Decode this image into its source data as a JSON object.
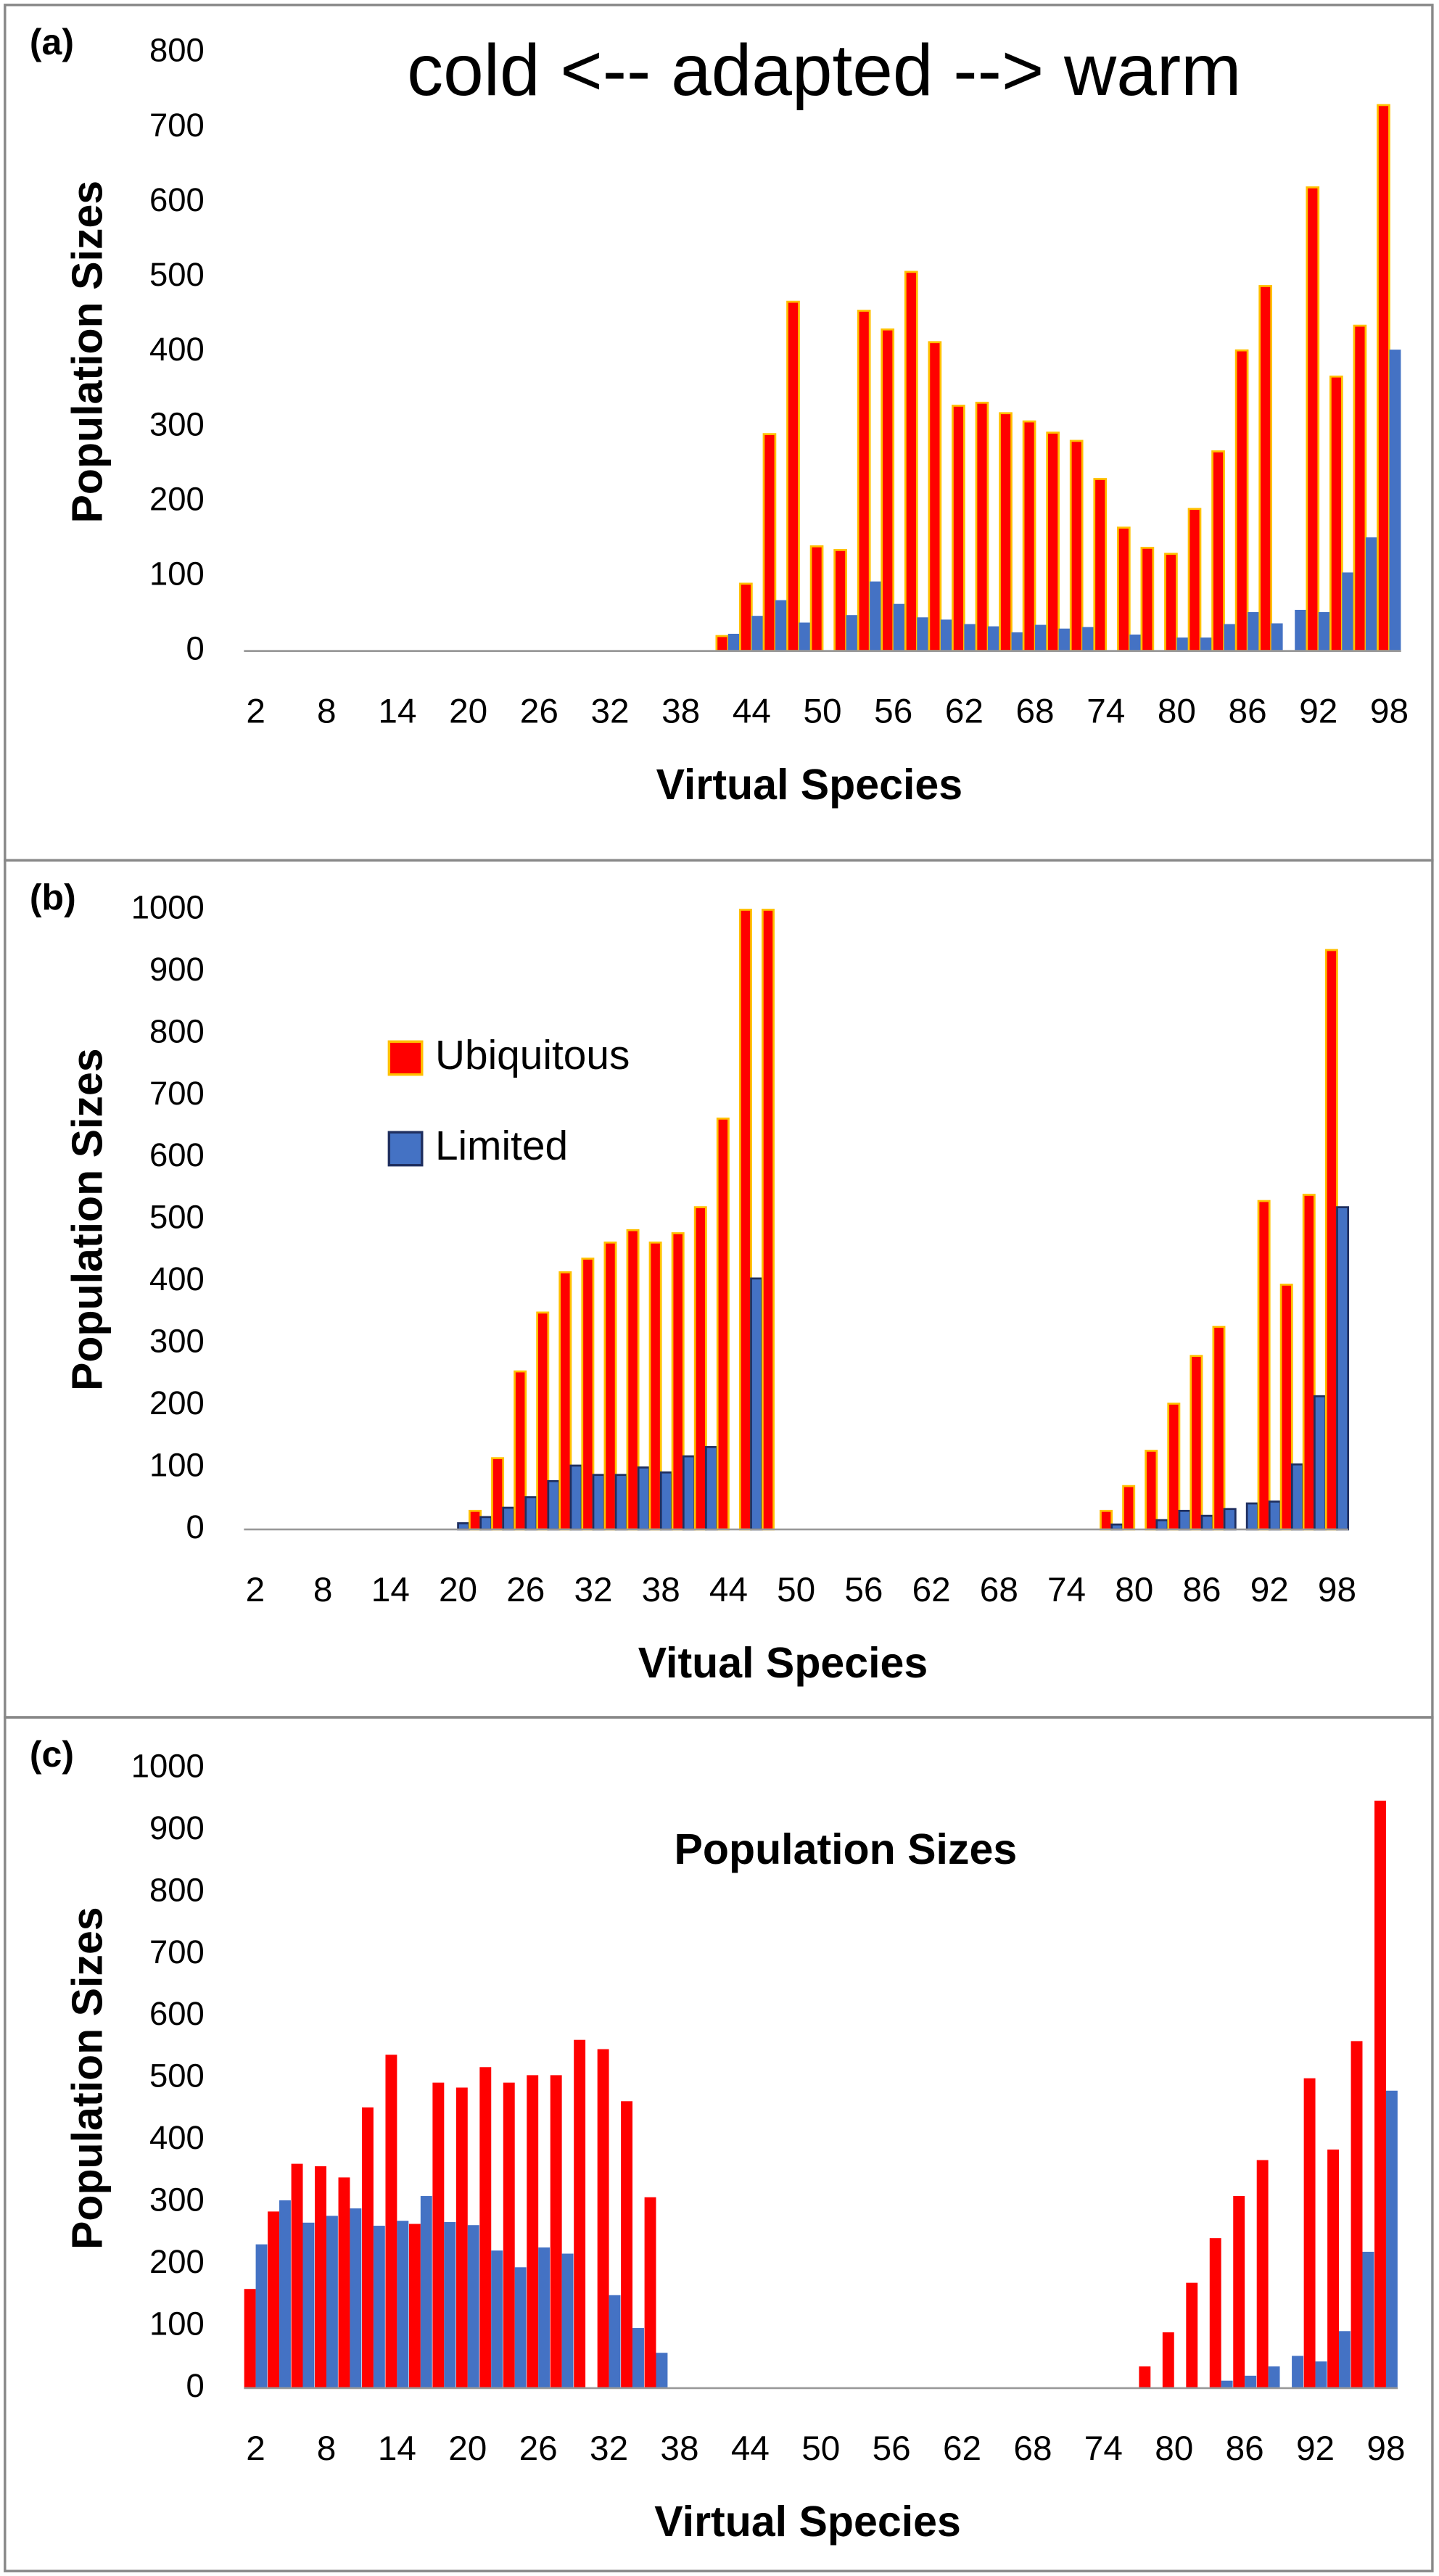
{
  "chart_data": [
    {
      "type": "bar",
      "panel": "(a)",
      "title": "cold <-- adapted  --> warm",
      "xlabel": "Virtual Species",
      "ylabel": "Population  Sizes",
      "categories": [
        2,
        null,
        null,
        8,
        null,
        null,
        14,
        null,
        null,
        20,
        null,
        null,
        26,
        null,
        null,
        32,
        null,
        null,
        38,
        null,
        null,
        44,
        null,
        null,
        50,
        null,
        null,
        56,
        null,
        null,
        62,
        null,
        null,
        68,
        null,
        null,
        74,
        null,
        null,
        80,
        null,
        null,
        86,
        null,
        null,
        92,
        null,
        null,
        98
      ],
      "ylim": [
        0,
        800
      ],
      "yticks": [
        0,
        100,
        200,
        300,
        400,
        500,
        600,
        700,
        800
      ],
      "series": [
        {
          "color": "#ff0000",
          "edgecolor": "#ffc000",
          "values": [
            0,
            0,
            0,
            0,
            0,
            0,
            0,
            0,
            0,
            0,
            0,
            0,
            0,
            0,
            0,
            0,
            0,
            0,
            0,
            0,
            20,
            90,
            290,
            467,
            140,
            135,
            455,
            430,
            507,
            413,
            328,
            332,
            318,
            307,
            292,
            281,
            230,
            165,
            138,
            130,
            190,
            267,
            402,
            488,
            0,
            620,
            367,
            435,
            730
          ]
        },
        {
          "color": "#4472c4",
          "values": [
            0,
            0,
            0,
            0,
            0,
            0,
            0,
            0,
            0,
            0,
            0,
            0,
            0,
            0,
            0,
            0,
            0,
            0,
            0,
            0,
            23,
            47,
            68,
            38,
            0,
            48,
            93,
            63,
            45,
            42,
            36,
            33,
            25,
            35,
            30,
            32,
            0,
            22,
            0,
            18,
            18,
            36,
            52,
            37,
            55,
            52,
            105,
            152,
            403
          ]
        }
      ]
    },
    {
      "type": "bar",
      "panel": "(b)",
      "xlabel": "Vitual Species",
      "ylabel": "Population  Sizes",
      "legend": "upper left",
      "categories": [
        2,
        null,
        null,
        8,
        null,
        null,
        14,
        null,
        null,
        20,
        null,
        null,
        26,
        null,
        null,
        32,
        null,
        null,
        38,
        null,
        null,
        44,
        null,
        null,
        50,
        null,
        null,
        56,
        null,
        null,
        62,
        null,
        null,
        68,
        null,
        null,
        74,
        null,
        null,
        80,
        null,
        null,
        86,
        null,
        null,
        92,
        null,
        null,
        98
      ],
      "ylim": [
        0,
        1000
      ],
      "yticks": [
        0,
        100,
        200,
        300,
        400,
        500,
        600,
        700,
        800,
        900,
        1000
      ],
      "series": [
        {
          "name": "Ubiquitous",
          "color": "#ff0000",
          "edgecolor": "#ffc000",
          "values": [
            0,
            0,
            0,
            0,
            0,
            0,
            0,
            0,
            0,
            0,
            30,
            115,
            255,
            350,
            415,
            437,
            463,
            483,
            463,
            478,
            520,
            663,
            1000,
            1000,
            0,
            0,
            0,
            0,
            0,
            0,
            0,
            0,
            0,
            0,
            0,
            0,
            0,
            0,
            30,
            70,
            127,
            203,
            280,
            327,
            0,
            530,
            395,
            540,
            935
          ]
        },
        {
          "name": "Limited",
          "color": "#4472c4",
          "edgecolor": "#1f2f5f",
          "values": [
            0,
            0,
            0,
            0,
            0,
            0,
            0,
            0,
            0,
            10,
            20,
            35,
            52,
            78,
            103,
            88,
            88,
            100,
            92,
            118,
            133,
            0,
            405,
            0,
            0,
            0,
            0,
            0,
            0,
            0,
            0,
            0,
            0,
            0,
            0,
            0,
            0,
            0,
            8,
            0,
            15,
            30,
            22,
            33,
            42,
            45,
            105,
            215,
            520
          ]
        }
      ]
    },
    {
      "type": "bar",
      "panel": "(c)",
      "title": "Population  Sizes",
      "xlabel": "Virtual Species",
      "ylabel": "Population  Sizes",
      "categories": [
        2,
        null,
        null,
        8,
        null,
        null,
        14,
        null,
        null,
        20,
        null,
        null,
        26,
        null,
        null,
        32,
        null,
        null,
        38,
        null,
        null,
        44,
        null,
        null,
        50,
        null,
        null,
        56,
        null,
        null,
        62,
        null,
        null,
        68,
        null,
        null,
        74,
        null,
        null,
        80,
        null,
        null,
        86,
        null,
        null,
        92,
        null,
        null,
        98
      ],
      "ylim": [
        0,
        1000
      ],
      "yticks": [
        0,
        100,
        200,
        300,
        400,
        500,
        600,
        700,
        800,
        900,
        1000
      ],
      "series": [
        {
          "color": "#ff0000",
          "values": [
            160,
            285,
            362,
            358,
            340,
            453,
            538,
            265,
            493,
            485,
            518,
            493,
            505,
            505,
            562,
            547,
            463,
            308,
            0,
            0,
            0,
            0,
            0,
            0,
            0,
            0,
            0,
            0,
            0,
            0,
            0,
            0,
            0,
            0,
            0,
            0,
            0,
            0,
            35,
            90,
            170,
            242,
            310,
            368,
            0,
            500,
            385,
            560,
            948
          ]
        },
        {
          "color": "#4472c4",
          "values": [
            232,
            303,
            267,
            278,
            290,
            262,
            270,
            310,
            268,
            263,
            222,
            195,
            227,
            217,
            0,
            150,
            97,
            57,
            0,
            0,
            0,
            0,
            0,
            0,
            0,
            0,
            0,
            0,
            0,
            0,
            0,
            0,
            0,
            0,
            0,
            0,
            0,
            0,
            0,
            0,
            0,
            12,
            20,
            35,
            52,
            43,
            92,
            220,
            480
          ]
        }
      ]
    }
  ]
}
